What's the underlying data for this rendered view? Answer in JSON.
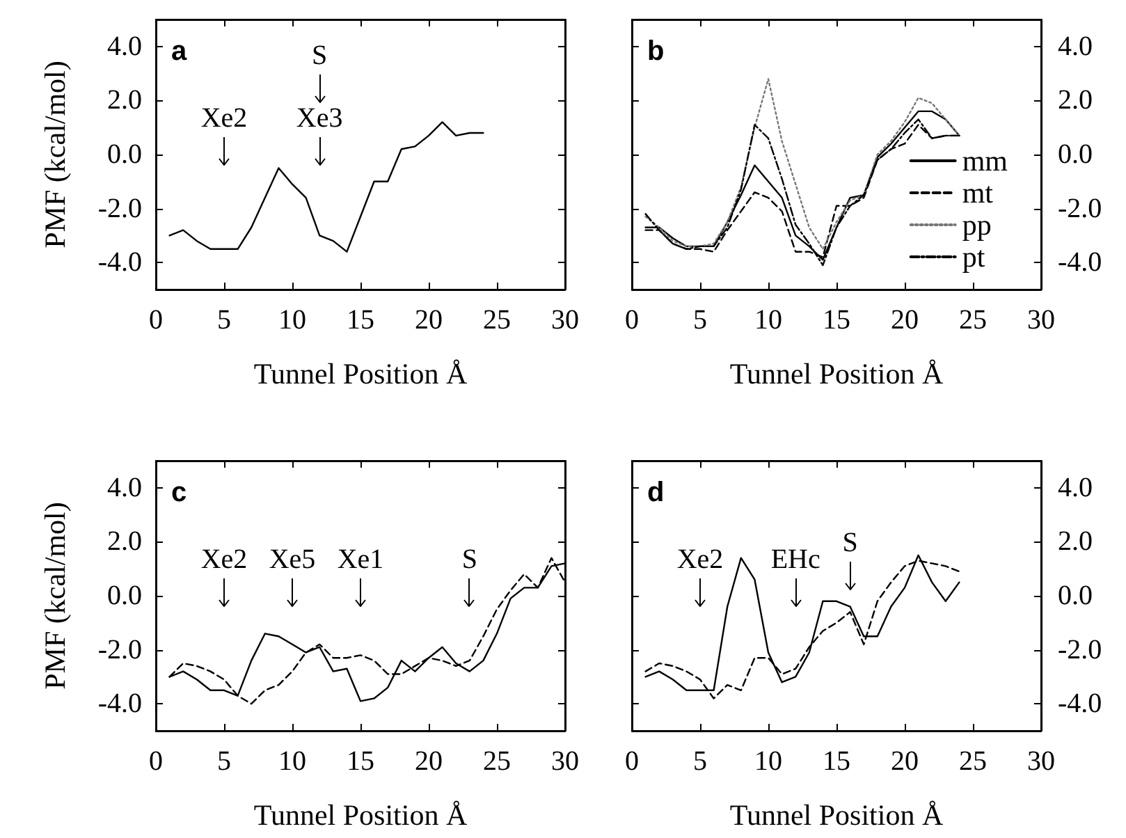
{
  "chart_data": [
    {
      "type": "line",
      "title": "a",
      "xlabel": "Tunnel Position Å",
      "ylabel": "PMF (kcal/mol)",
      "xlim": [
        0,
        30
      ],
      "xticks": [
        0,
        5,
        10,
        15,
        20,
        25,
        30
      ],
      "ylim": [
        -5,
        5
      ],
      "yticks": [
        {
          "value": -4,
          "label": "-4.0"
        },
        {
          "value": -2,
          "label": "-2.0"
        },
        {
          "value": 0,
          "label": "0.0"
        },
        {
          "value": 2,
          "label": "2.0"
        },
        {
          "value": 4,
          "label": "4.0"
        }
      ],
      "grid": false,
      "legend": false,
      "marker": "none",
      "x": [
        1,
        2,
        3,
        4,
        5,
        6,
        7,
        8,
        9,
        10,
        11,
        12,
        13,
        14,
        15,
        16,
        17,
        18,
        19,
        20,
        21,
        22,
        23,
        24
      ],
      "series": [
        {
          "color": "#000000",
          "line_style": "solid",
          "values": [
            -3.0,
            -2.8,
            -3.2,
            -3.5,
            -3.5,
            -3.5,
            -2.7,
            -1.6,
            -0.5,
            -1.1,
            -1.6,
            -3.0,
            -3.2,
            -3.6,
            -2.3,
            -1.0,
            -1.0,
            0.2,
            0.3,
            0.7,
            1.2,
            0.7,
            0.8,
            0.8
          ]
        }
      ],
      "annotations": [
        {
          "text": "Xe2",
          "x": 5
        },
        {
          "text": "Xe3",
          "x": 12
        },
        {
          "text": "S",
          "x": 12
        }
      ]
    },
    {
      "type": "line",
      "title": "b",
      "xlabel": "Tunnel Position Å",
      "xlim": [
        0,
        30
      ],
      "xticks": [
        0,
        5,
        10,
        15,
        20,
        25,
        30
      ],
      "ylim": [
        -5,
        5
      ],
      "yticks": [
        {
          "value": -4,
          "label": "-4.0"
        },
        {
          "value": -2,
          "label": "-2.0"
        },
        {
          "value": 0,
          "label": "0.0"
        },
        {
          "value": 2,
          "label": "2.0"
        },
        {
          "value": 4,
          "label": "4.0"
        }
      ],
      "grid": false,
      "legend": "right",
      "marker": "none",
      "x": [
        1,
        2,
        3,
        4,
        5,
        6,
        7,
        8,
        9,
        10,
        11,
        12,
        13,
        14,
        15,
        16,
        17,
        18,
        19,
        20,
        21,
        22,
        23,
        24
      ],
      "series": [
        {
          "name": "mm",
          "color": "#000000",
          "line_style": "solid",
          "values": [
            -2.7,
            -2.7,
            -3.1,
            -3.4,
            -3.4,
            -3.4,
            -2.5,
            -1.5,
            -0.4,
            -1.0,
            -1.6,
            -3.0,
            -3.4,
            -3.9,
            -2.7,
            -1.6,
            -1.5,
            -0.1,
            0.4,
            1.0,
            1.6,
            1.6,
            1.3,
            0.7
          ]
        },
        {
          "name": "mt",
          "color": "#000000",
          "line_style": "dashed",
          "values": [
            -2.8,
            -2.8,
            -3.3,
            -3.5,
            -3.5,
            -3.6,
            -2.8,
            -2.1,
            -1.4,
            -1.6,
            -2.1,
            -3.6,
            -3.6,
            -3.8,
            -1.9,
            -1.9,
            -1.6,
            -0.2,
            0.2,
            0.4,
            1.1,
            0.6,
            0.7,
            0.7
          ]
        },
        {
          "name": "pp",
          "color": "#777777",
          "line_style": "dotted",
          "values": [
            -2.3,
            -2.7,
            -3.2,
            -3.4,
            -3.4,
            -3.3,
            -2.5,
            -1.2,
            1.0,
            2.8,
            0.5,
            -1.1,
            -2.7,
            -3.5,
            -2.5,
            -1.7,
            -1.5,
            0.0,
            0.5,
            1.2,
            2.1,
            1.9,
            1.3,
            0.7
          ]
        },
        {
          "name": "pt",
          "color": "#000000",
          "line_style": "dashdot",
          "values": [
            -2.2,
            -2.8,
            -3.3,
            -3.5,
            -3.4,
            -3.4,
            -2.7,
            -1.3,
            1.1,
            0.6,
            -0.9,
            -2.6,
            -3.3,
            -4.1,
            -2.7,
            -1.9,
            -1.5,
            -0.2,
            0.2,
            0.8,
            1.3,
            0.6,
            0.7,
            0.7
          ]
        }
      ]
    },
    {
      "type": "line",
      "title": "c",
      "xlabel": "Tunnel Position Å",
      "ylabel": "PMF (kcal/mol)",
      "xlim": [
        0,
        30
      ],
      "xticks": [
        0,
        5,
        10,
        15,
        20,
        25,
        30
      ],
      "ylim": [
        -5,
        5
      ],
      "yticks": [
        {
          "value": -4,
          "label": "-4.0"
        },
        {
          "value": -2,
          "label": "-2.0"
        },
        {
          "value": 0,
          "label": "0.0"
        },
        {
          "value": 2,
          "label": "2.0"
        },
        {
          "value": 4,
          "label": "4.0"
        }
      ],
      "grid": false,
      "legend": false,
      "marker": "none",
      "x": [
        1,
        2,
        3,
        4,
        5,
        6,
        7,
        8,
        9,
        10,
        11,
        12,
        13,
        14,
        15,
        16,
        17,
        18,
        19,
        20,
        21,
        22,
        23,
        24,
        25,
        26,
        27,
        28,
        29,
        30
      ],
      "series": [
        {
          "color": "#000000",
          "line_style": "solid",
          "values": [
            -3.0,
            -2.8,
            -3.1,
            -3.5,
            -3.5,
            -3.7,
            -2.4,
            -1.4,
            -1.5,
            -1.8,
            -2.1,
            -1.9,
            -2.8,
            -2.7,
            -3.9,
            -3.8,
            -3.4,
            -2.4,
            -2.8,
            -2.3,
            -1.9,
            -2.5,
            -2.8,
            -2.4,
            -1.4,
            -0.1,
            0.3,
            0.3,
            1.1,
            1.2
          ]
        },
        {
          "color": "#000000",
          "line_style": "dashed",
          "values": [
            -3.0,
            -2.5,
            -2.6,
            -2.8,
            -3.1,
            -3.7,
            -4.0,
            -3.5,
            -3.3,
            -2.8,
            -2.1,
            -1.8,
            -2.3,
            -2.3,
            -2.2,
            -2.4,
            -2.9,
            -2.9,
            -2.6,
            -2.3,
            -2.4,
            -2.6,
            -2.4,
            -1.5,
            -0.5,
            0.2,
            0.8,
            0.3,
            1.4,
            0.5
          ]
        }
      ],
      "annotations": [
        {
          "text": "Xe2",
          "x": 5
        },
        {
          "text": "Xe5",
          "x": 10
        },
        {
          "text": "Xe1",
          "x": 15
        },
        {
          "text": "S",
          "x": 23
        }
      ]
    },
    {
      "type": "line",
      "title": "d",
      "xlabel": "Tunnel Position Å",
      "xlim": [
        0,
        30
      ],
      "xticks": [
        0,
        5,
        10,
        15,
        20,
        25,
        30
      ],
      "ylim": [
        -5,
        5
      ],
      "yticks": [
        {
          "value": -4,
          "label": "-4.0"
        },
        {
          "value": -2,
          "label": "-2.0"
        },
        {
          "value": 0,
          "label": "0.0"
        },
        {
          "value": 2,
          "label": "2.0"
        },
        {
          "value": 4,
          "label": "4.0"
        }
      ],
      "grid": false,
      "legend": false,
      "marker": "none",
      "x": [
        1,
        2,
        3,
        4,
        5,
        6,
        7,
        8,
        9,
        10,
        11,
        12,
        13,
        14,
        15,
        16,
        17,
        18,
        19,
        20,
        21,
        22,
        23,
        24
      ],
      "series": [
        {
          "color": "#000000",
          "line_style": "solid",
          "values": [
            -3.0,
            -2.8,
            -3.1,
            -3.5,
            -3.5,
            -3.5,
            -0.4,
            1.4,
            0.6,
            -2.1,
            -3.2,
            -3.0,
            -2.1,
            -0.2,
            -0.2,
            -0.4,
            -1.5,
            -1.5,
            -0.4,
            0.3,
            1.5,
            0.5,
            -0.2,
            0.5
          ]
        },
        {
          "color": "#000000",
          "line_style": "dashed",
          "values": [
            -2.8,
            -2.5,
            -2.6,
            -2.8,
            -3.1,
            -3.8,
            -3.3,
            -3.5,
            -2.3,
            -2.3,
            -2.9,
            -2.7,
            -1.9,
            -1.3,
            -1.0,
            -0.6,
            -1.8,
            -0.2,
            0.5,
            1.1,
            1.3,
            1.2,
            1.1,
            0.9
          ]
        }
      ],
      "annotations": [
        {
          "text": "Xe2",
          "x": 5
        },
        {
          "text": "EHc",
          "x": 12
        },
        {
          "text": "S",
          "x": 16
        }
      ]
    }
  ]
}
